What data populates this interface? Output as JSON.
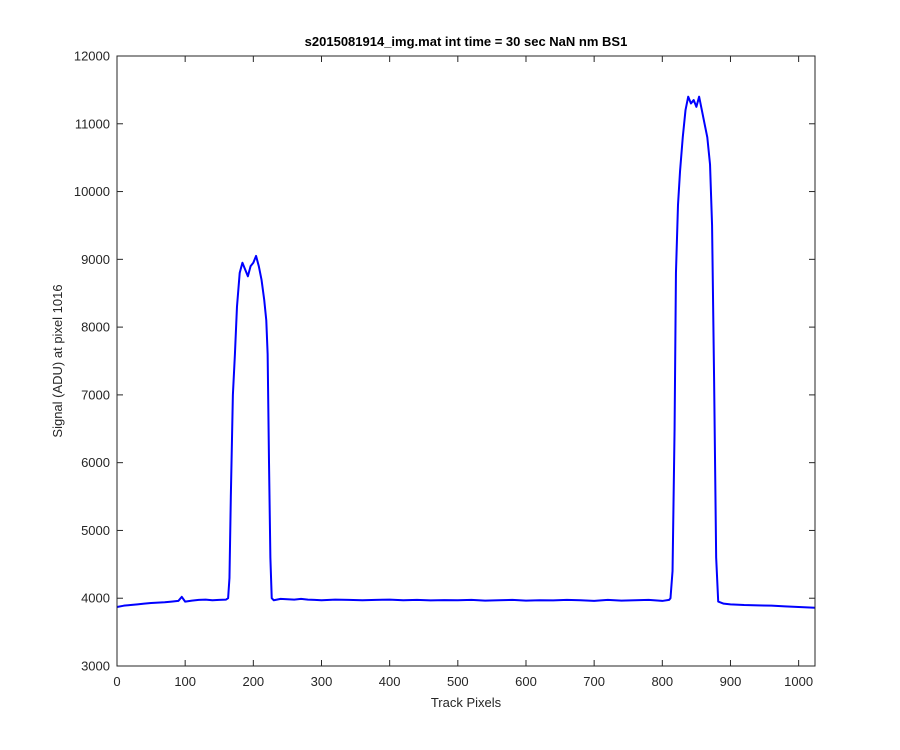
{
  "chart_data": {
    "type": "line",
    "title": "s2015081914_img.mat int time = 30 sec  NaN nm BS1",
    "xlabel": "Track Pixels",
    "ylabel": "Signal (ADU) at pixel 1016",
    "xlim": [
      0,
      1024
    ],
    "ylim": [
      3000,
      12000
    ],
    "xticks": [
      0,
      100,
      200,
      300,
      400,
      500,
      600,
      700,
      800,
      900,
      1000
    ],
    "yticks": [
      3000,
      4000,
      5000,
      6000,
      7000,
      8000,
      9000,
      10000,
      11000,
      12000
    ],
    "grid": false,
    "legend": "none",
    "series": [
      {
        "color": "#0000ff",
        "x": [
          0,
          10,
          20,
          30,
          40,
          50,
          60,
          70,
          80,
          90,
          95,
          100,
          110,
          120,
          130,
          140,
          150,
          160,
          163,
          165,
          167,
          170,
          173,
          176,
          180,
          184,
          188,
          192,
          196,
          200,
          204,
          208,
          212,
          216,
          219,
          221,
          223,
          225,
          227,
          230,
          240,
          250,
          260,
          270,
          280,
          290,
          300,
          320,
          340,
          360,
          380,
          400,
          420,
          440,
          460,
          480,
          500,
          520,
          540,
          560,
          580,
          600,
          620,
          640,
          660,
          680,
          700,
          720,
          740,
          760,
          780,
          800,
          810,
          812,
          815,
          818,
          820,
          823,
          826,
          830,
          834,
          838,
          842,
          846,
          850,
          854,
          858,
          862,
          866,
          870,
          873,
          876,
          879,
          882,
          890,
          900,
          920,
          940,
          960,
          980,
          1000,
          1024
        ],
        "y": [
          3870,
          3890,
          3900,
          3910,
          3920,
          3930,
          3935,
          3940,
          3950,
          3960,
          4020,
          3950,
          3965,
          3975,
          3980,
          3970,
          3975,
          3980,
          4000,
          4300,
          5500,
          7000,
          7600,
          8300,
          8800,
          8950,
          8850,
          8750,
          8900,
          8950,
          9050,
          8900,
          8700,
          8400,
          8100,
          7600,
          6000,
          4600,
          4000,
          3970,
          3990,
          3985,
          3980,
          3990,
          3980,
          3975,
          3970,
          3980,
          3975,
          3970,
          3975,
          3980,
          3970,
          3975,
          3968,
          3972,
          3970,
          3975,
          3965,
          3970,
          3975,
          3965,
          3970,
          3968,
          3975,
          3970,
          3960,
          3975,
          3965,
          3970,
          3975,
          3960,
          3975,
          4000,
          4400,
          6500,
          8800,
          9800,
          10300,
          10800,
          11200,
          11400,
          11300,
          11350,
          11250,
          11400,
          11200,
          11000,
          10800,
          10400,
          9500,
          7200,
          4600,
          3950,
          3920,
          3910,
          3900,
          3895,
          3890,
          3880,
          3870,
          3860
        ]
      }
    ]
  }
}
